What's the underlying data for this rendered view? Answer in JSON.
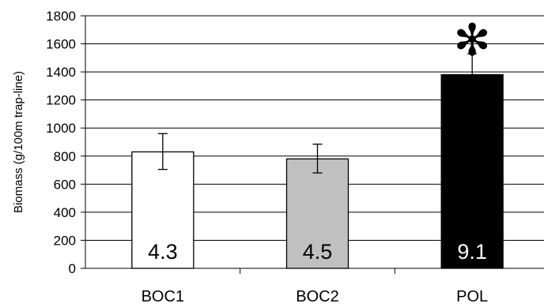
{
  "chart_data": {
    "type": "bar",
    "title": "",
    "xlabel": "",
    "ylabel": "Biomass (g/100m trap-line)",
    "ylim": [
      0,
      1800
    ],
    "yticks": [
      0,
      200,
      400,
      600,
      800,
      1000,
      1200,
      1400,
      1600,
      1800
    ],
    "grid": true,
    "categories": [
      "BOC1",
      "BOC2",
      "POL"
    ],
    "values": [
      830,
      780,
      1380
    ],
    "error_upper": [
      960,
      885,
      1530
    ],
    "error_lower": [
      705,
      680,
      1380
    ],
    "bar_labels": [
      "4.3",
      "4.5",
      "9.1"
    ],
    "bar_colors": [
      "#ffffff",
      "#c0c0c0",
      "#000000"
    ],
    "bar_label_colors": [
      "#000000",
      "#000000",
      "#ffffff"
    ],
    "annotation": {
      "category": "POL",
      "symbol": "✻"
    }
  }
}
